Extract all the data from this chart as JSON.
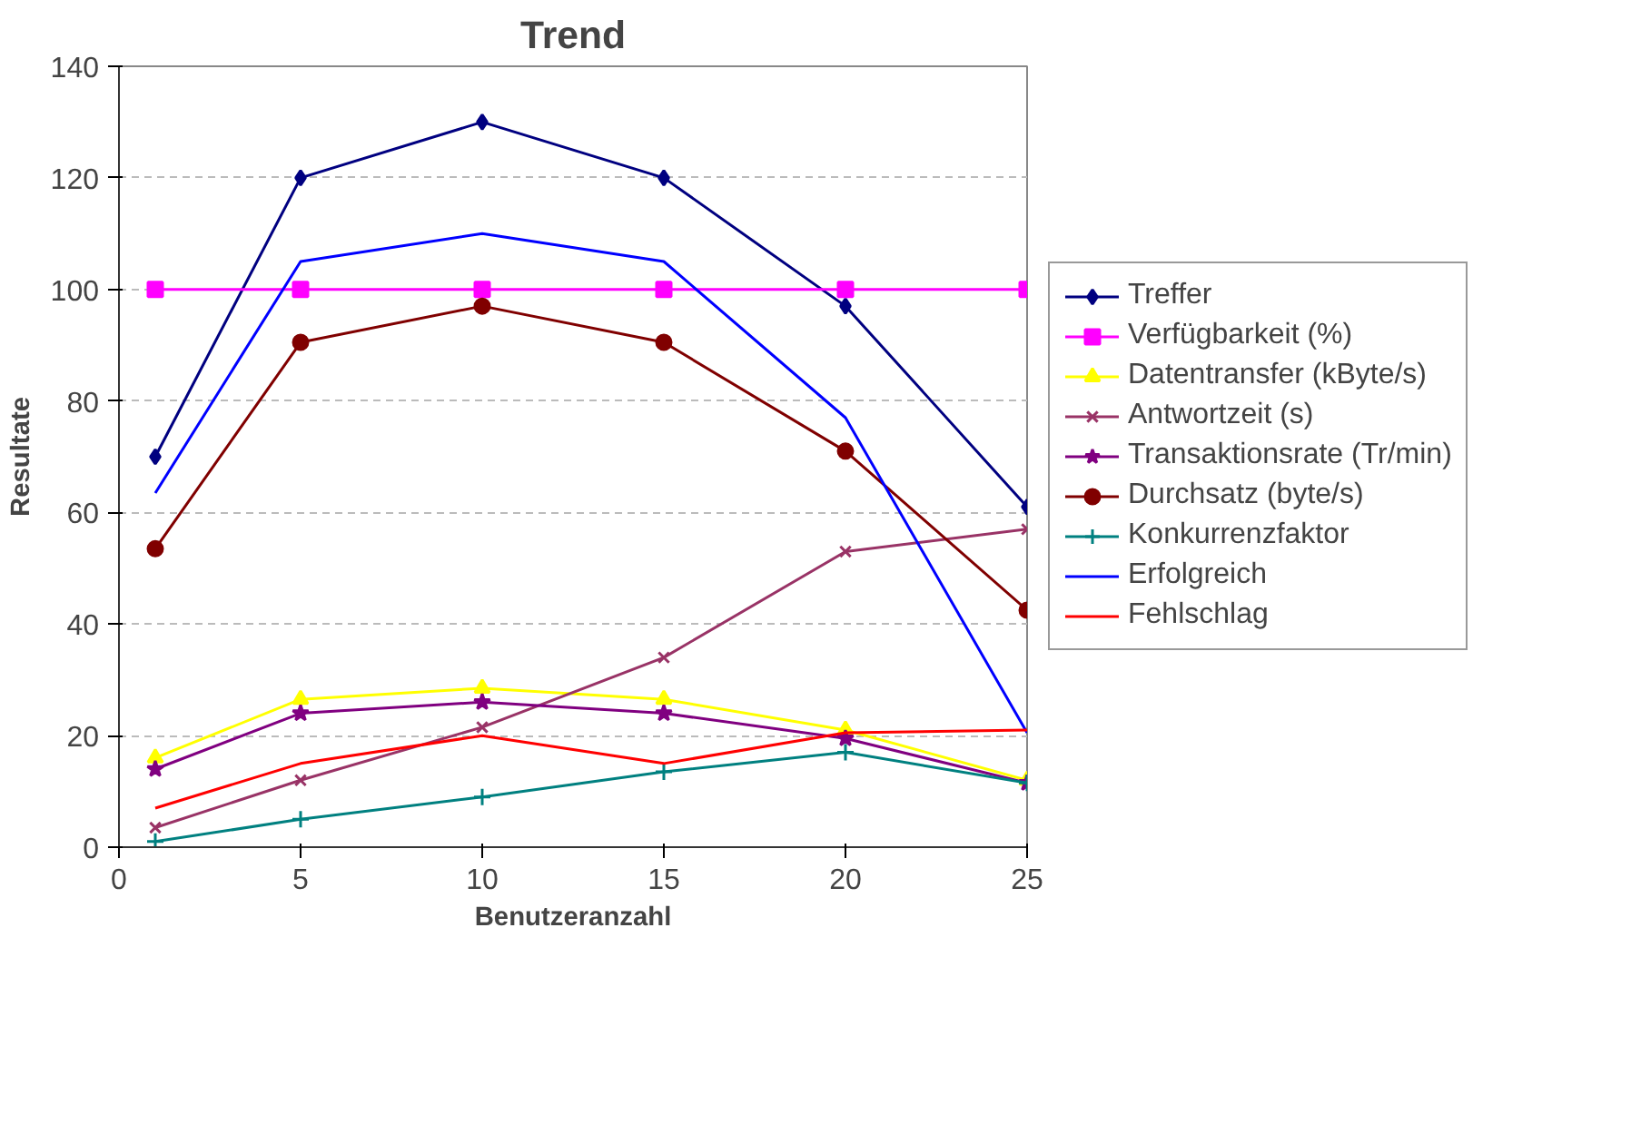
{
  "chart_data": {
    "type": "line",
    "title": "Trend",
    "xlabel": "Benutzeranzahl",
    "ylabel": "Resultate",
    "x": [
      1,
      5,
      10,
      15,
      20,
      25
    ],
    "xlim": [
      0,
      25
    ],
    "xticks": [
      0,
      5,
      10,
      15,
      20,
      25
    ],
    "ylim": [
      0,
      140
    ],
    "yticks": [
      0,
      20,
      40,
      60,
      80,
      100,
      120,
      140
    ],
    "grid": "y",
    "legend": "right",
    "line_style": "solid",
    "series": [
      {
        "name": "Treffer",
        "color": "#000080",
        "marker": "diamond",
        "values": [
          70,
          120,
          130,
          120,
          97,
          61
        ]
      },
      {
        "name": "Verfügbarkeit (%)",
        "color": "#ff00ff",
        "marker": "square",
        "values": [
          100,
          100,
          100,
          100,
          100,
          100
        ]
      },
      {
        "name": "Datentransfer (kByte/s)",
        "color": "#ffff00",
        "marker": "triangle",
        "values": [
          16,
          26.5,
          28.5,
          26.5,
          21,
          12
        ]
      },
      {
        "name": "Antwortzeit (s)",
        "color": "#993366",
        "marker": "x",
        "values": [
          3.5,
          12,
          21.5,
          34,
          53,
          57
        ]
      },
      {
        "name": "Transaktionsrate (Tr/min)",
        "color": "#800080",
        "marker": "star",
        "values": [
          14,
          24,
          26,
          24,
          19.5,
          11.5
        ]
      },
      {
        "name": "Durchsatz (byte/s)",
        "color": "#800000",
        "marker": "circle",
        "values": [
          53.5,
          90.5,
          97,
          90.5,
          71,
          42.5
        ]
      },
      {
        "name": "Konkurrenzfaktor",
        "color": "#008080",
        "marker": "cross",
        "values": [
          1,
          5,
          9,
          13.5,
          17,
          11.5
        ]
      },
      {
        "name": "Erfolgreich",
        "color": "#0000ff",
        "marker": "none",
        "values": [
          63.5,
          105,
          110,
          105,
          77,
          20.5
        ]
      },
      {
        "name": "Fehlschlag",
        "color": "#ff0000",
        "marker": "none",
        "values": [
          7,
          15,
          20,
          15,
          20.5,
          21
        ]
      }
    ]
  }
}
